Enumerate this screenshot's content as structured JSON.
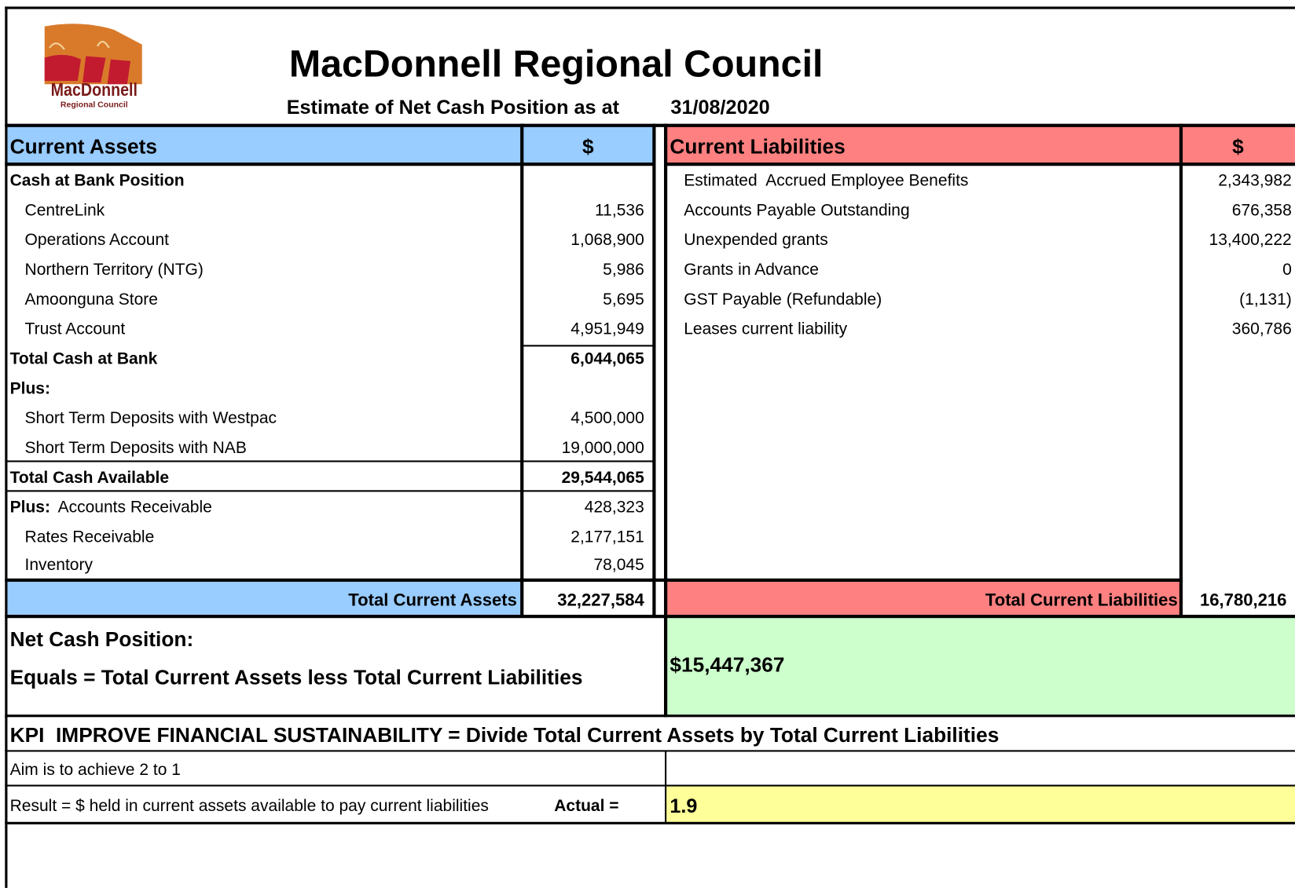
{
  "header": {
    "title": "MacDonnell Regional Council",
    "subtitle": "Estimate of Net Cash Position as at",
    "date": "31/08/2020",
    "logo_name": "MacDonnell",
    "logo_tagline": "Regional Council"
  },
  "assets": {
    "heading": "Current Assets",
    "currency": "$",
    "rows": [
      {
        "label": "Cash at Bank Position"
      },
      {
        "label": "CentreLink",
        "value": "11,536"
      },
      {
        "label": "Operations Account",
        "value": "1,068,900"
      },
      {
        "label": "Northern Territory (NTG)",
        "value": "5,986"
      },
      {
        "label": "Amoonguna Store",
        "value": "5,695"
      },
      {
        "label": "Trust Account",
        "value": "4,951,949"
      },
      {
        "label": "Total Cash at Bank",
        "value": "6,044,065"
      },
      {
        "label": "Plus:"
      },
      {
        "label": "Short Term Deposits with Westpac",
        "value": "4,500,000"
      },
      {
        "label": "Short Term Deposits with NAB",
        "value": "19,000,000"
      },
      {
        "label": "Total Cash Available",
        "value": "29,544,065"
      },
      {
        "prefix": "Plus:",
        "label": "Accounts Receivable",
        "value": "428,323"
      },
      {
        "label": "Rates Receivable",
        "value": "2,177,151"
      },
      {
        "label": "Inventory",
        "value": "78,045"
      }
    ],
    "total_label": "Total Current Assets",
    "total": "32,227,584"
  },
  "liabilities": {
    "heading": "Current Liabilities",
    "currency": "$",
    "rows": [
      {
        "label": "Estimated  Accrued Employee Benefits",
        "value": "2,343,982"
      },
      {
        "label": "Accounts Payable Outstanding",
        "value": "676,358"
      },
      {
        "label": "Unexpended grants",
        "value": "13,400,222"
      },
      {
        "label": "Grants in Advance",
        "value": "0"
      },
      {
        "label": "GST Payable (Refundable)",
        "value": "(1,131)"
      },
      {
        "label": "Leases current liability",
        "value": "360,786"
      }
    ],
    "total_label": "Total Current Liabilities",
    "total": "16,780,216"
  },
  "net_cash": {
    "label": "Net Cash Position:",
    "equation": "Equals = Total Current Assets less Total Current Liabilities",
    "value": "$15,447,367"
  },
  "kpi": {
    "title": "KPI  IMPROVE FINANCIAL SUSTAINABILITY = Divide Total Current Assets by Total Current Liabilities",
    "aim": "Aim is to achieve 2 to 1",
    "result": "Result = $ held in current assets available to pay current liabilities",
    "actual_label": "Actual =",
    "actual": "1.9"
  }
}
